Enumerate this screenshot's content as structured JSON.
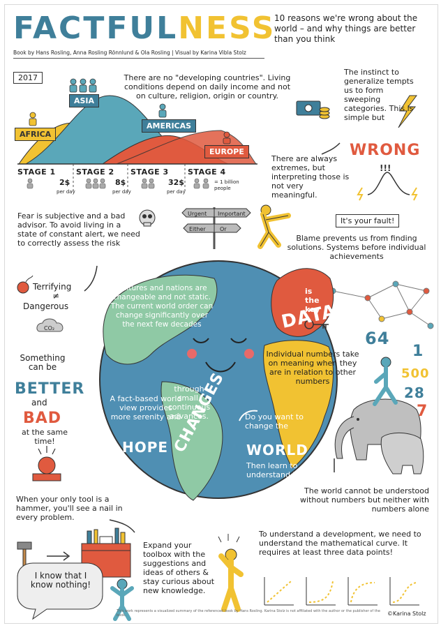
{
  "header": {
    "title_part1": "FACTFUL",
    "title_part2": "NESS",
    "subtitle": "10 reasons we're wrong about the world – and why things are better than you think",
    "credits": "Book by Hans Rosling, Anna Rosling Rönnlund & Ola Rosling | Visual by Karina Vibla Stolz"
  },
  "income_chart": {
    "year": "2017",
    "regions": [
      "AFRICA",
      "ASIA",
      "AMERICAS",
      "EUROPE"
    ],
    "stages": [
      "STAGE 1",
      "STAGE 2",
      "STAGE 3",
      "STAGE 4"
    ],
    "incomes": [
      "2$",
      "8$",
      "32$"
    ],
    "per_day": "per day",
    "people_legend": "= 1 billion people"
  },
  "texts": {
    "developing": "There are no \"developing countries\". Living conditions depend on daily income and not on culture, religion, origin or country.",
    "generalize": "The instinct to generalize tempts us to form sweeping categories. This is simple but",
    "wrong": "WRONG",
    "extremes": "There are always extremes, but interpreting those is not very meaningful.",
    "fear": "Fear is subjective and a bad advisor. To avoid living in a state of constant alert, we need to correctly assess the risk",
    "terrifying": "Terrifying",
    "not_equal": "≠",
    "dangerous": "Dangerous",
    "co2": "CO₂",
    "signpost": [
      "Urgent",
      "Important",
      "Either",
      "Or"
    ],
    "your_fault": "It's your fault!",
    "blame": "Blame prevents us from finding solutions. Systems before individual achievements",
    "cultures": "Cultures and nations are changeable and not static. The current world order can change significantly over the next few decades",
    "data_word": "DATA",
    "is_the_key": "is the key",
    "numbers_relation": "Individual numbers take on meaning when they are in relation to other numbers",
    "numbers": [
      "64",
      "1",
      "500",
      "28",
      "7"
    ],
    "something": "Something can be",
    "better": "BETTER",
    "and": "and",
    "bad": "BAD",
    "same_time": "at the same time!",
    "fact_based": "A fact-based world view provides more serenity and",
    "hope": "HOPE",
    "through_small": "through small, continuous advances.",
    "changes": "CHANGES",
    "want_change": "Do you want to change the",
    "world": "WORLD",
    "learn": "Then learn to understand it!",
    "world_numbers": "The world cannot be understood without numbers but neither with numbers alone",
    "hammer": "When your only tool is a hammer, you'll see a nail in every problem.",
    "toolbox": "Expand your toolbox with the suggestions and ideas of others & stay curious about new knowledge.",
    "know_nothing": "I know that I know nothing!",
    "development": "To understand a development, we need to understand the mathematical curve. It requires at least three data points!",
    "footer": "This work represents a visualized summary of the referenced book by Hans Rosling. Karina Stolz is not affiliated with the author or the publisher of the book.",
    "signature": "©Karina Stolz"
  },
  "colors": {
    "blue": "#3f7f9a",
    "yellow": "#f1c232",
    "red": "#e05a3f",
    "green": "#8fc9a5",
    "teal": "#5aa7b9"
  }
}
